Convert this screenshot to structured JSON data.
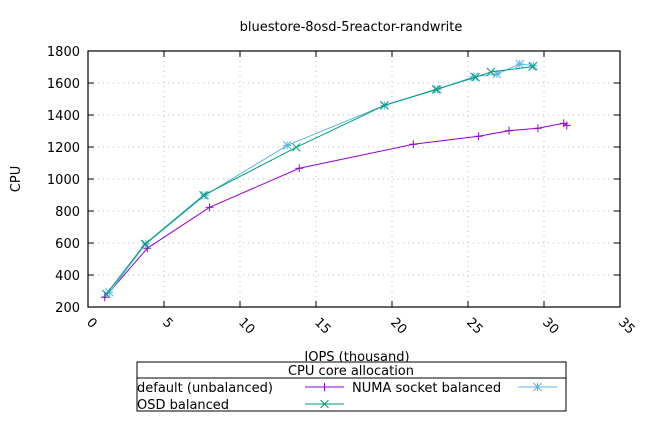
{
  "chart_data": {
    "type": "line",
    "title": "bluestore-8osd-5reactor-randwrite",
    "xlabel": "IOPS (thousand)",
    "ylabel": "CPU",
    "xlim": [
      0,
      35
    ],
    "ylim": [
      200,
      1800
    ],
    "xticks": [
      0,
      5,
      10,
      15,
      20,
      25,
      30,
      35
    ],
    "yticks": [
      200,
      400,
      600,
      800,
      1000,
      1200,
      1400,
      1600,
      1800
    ],
    "grid": true,
    "legend": {
      "title": "CPU core allocation",
      "placement": "bottom-outside"
    },
    "series": [
      {
        "name": "default (unbalanced)",
        "color": "#9400d3",
        "marker": "plus",
        "x": [
          1.1,
          3.9,
          8.0,
          13.9,
          21.4,
          25.7,
          27.7,
          29.6,
          31.3,
          31.5
        ],
        "y": [
          261,
          567,
          823,
          1067,
          1217,
          1267,
          1302,
          1317,
          1348,
          1335
        ]
      },
      {
        "name": "NUMA socket balanced",
        "color": "#56b4e9",
        "marker": "star",
        "x": [
          1.4,
          3.8,
          7.7,
          13.1,
          19.5,
          23.0,
          25.4,
          26.9,
          28.4,
          29.3
        ],
        "y": [
          292,
          594,
          898,
          1210,
          1460,
          1560,
          1640,
          1656,
          1719,
          1708
        ]
      },
      {
        "name": "OSD balanced",
        "color": "#009e73",
        "marker": "cross",
        "x": [
          1.2,
          3.75,
          7.6,
          13.7,
          19.5,
          22.9,
          25.5,
          26.5,
          29.25
        ],
        "y": [
          281,
          594,
          898,
          1198,
          1460,
          1560,
          1636,
          1669,
          1702
        ]
      }
    ]
  }
}
